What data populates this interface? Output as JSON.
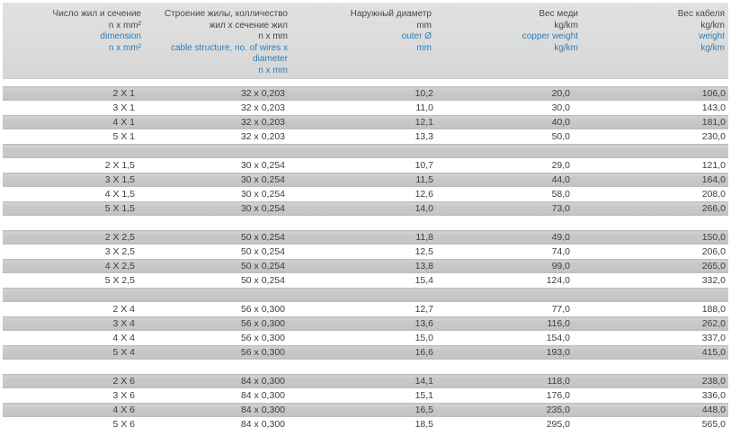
{
  "colors": {
    "page_background": "#ffffff",
    "header_background": "#dbdbdb",
    "stripe_background": "#c6c6c6",
    "text_dark": "#474747",
    "text_blue": "#2f7eb8"
  },
  "table": {
    "header": {
      "columns": [
        {
          "name": "dimension",
          "ru": [
            "Число жил и сечение",
            "n x mm²"
          ],
          "en": [
            "dimension",
            "n x mm²"
          ]
        },
        {
          "name": "cable-structure",
          "ru": [
            "Строение жилы, колличество",
            "жил x сечение жил",
            "n x mm"
          ],
          "en": [
            "cable structure, no. of wires x",
            "diameter",
            "n x mm"
          ]
        },
        {
          "name": "outer-diameter",
          "ru": [
            "Наружный диаметр",
            "mm"
          ],
          "en": [
            "outer Ø",
            "mm"
          ]
        },
        {
          "name": "copper-weight",
          "ru": [
            "Вес меди",
            "kg/km"
          ],
          "en": [
            "copper weight",
            "kg/km"
          ]
        },
        {
          "name": "cable-weight",
          "ru": [
            "Вес кабеля",
            "kg/km"
          ],
          "en": [
            "weight",
            "kg/km"
          ]
        }
      ]
    },
    "groups": [
      {
        "rows": [
          [
            "2 X 1",
            "32 x 0,203",
            "10,2",
            "20,0",
            "106,0"
          ],
          [
            "3 X 1",
            "32 x 0,203",
            "11,0",
            "30,0",
            "143,0"
          ],
          [
            "4 X 1",
            "32 x 0,203",
            "12,1",
            "40,0",
            "181,0"
          ],
          [
            "5 X 1",
            "32 x 0,203",
            "13,3",
            "50,0",
            "230,0"
          ]
        ]
      },
      {
        "rows": [
          [
            "2 X 1,5",
            "30 x 0,254",
            "10,7",
            "29,0",
            "121,0"
          ],
          [
            "3 X 1,5",
            "30 x 0,254",
            "11,5",
            "44,0",
            "164,0"
          ],
          [
            "4 X 1,5",
            "30 x 0,254",
            "12,6",
            "58,0",
            "208,0"
          ],
          [
            "5 X 1,5",
            "30 x 0,254",
            "14,0",
            "73,0",
            "266,0"
          ]
        ]
      },
      {
        "rows": [
          [
            "2 X 2,5",
            "50 x 0,254",
            "11,8",
            "49,0",
            "150,0"
          ],
          [
            "3 X 2,5",
            "50 x 0,254",
            "12,5",
            "74,0",
            "206,0"
          ],
          [
            "4 X 2,5",
            "50 x 0,254",
            "13,8",
            "99,0",
            "265,0"
          ],
          [
            "5 X 2,5",
            "50 x 0,254",
            "15,4",
            "124,0",
            "332,0"
          ]
        ]
      },
      {
        "rows": [
          [
            "2 X 4",
            "56 x 0,300",
            "12,7",
            "77,0",
            "188,0"
          ],
          [
            "3 X 4",
            "56 x 0,300",
            "13,6",
            "116,0",
            "262,0"
          ],
          [
            "4 X 4",
            "56 x 0,300",
            "15,0",
            "154,0",
            "337,0"
          ],
          [
            "5 X 4",
            "56 x 0,300",
            "16,6",
            "193,0",
            "415,0"
          ]
        ]
      },
      {
        "rows": [
          [
            "2 X 6",
            "84 x 0,300",
            "14,1",
            "118,0",
            "238,0"
          ],
          [
            "3 X 6",
            "84 x 0,300",
            "15,1",
            "176,0",
            "336,0"
          ],
          [
            "4 X 6",
            "84 x 0,300",
            "16,5",
            "235,0",
            "448,0"
          ],
          [
            "5 X 6",
            "84 x 0,300",
            "18,5",
            "295,0",
            "565,0"
          ]
        ]
      }
    ]
  }
}
